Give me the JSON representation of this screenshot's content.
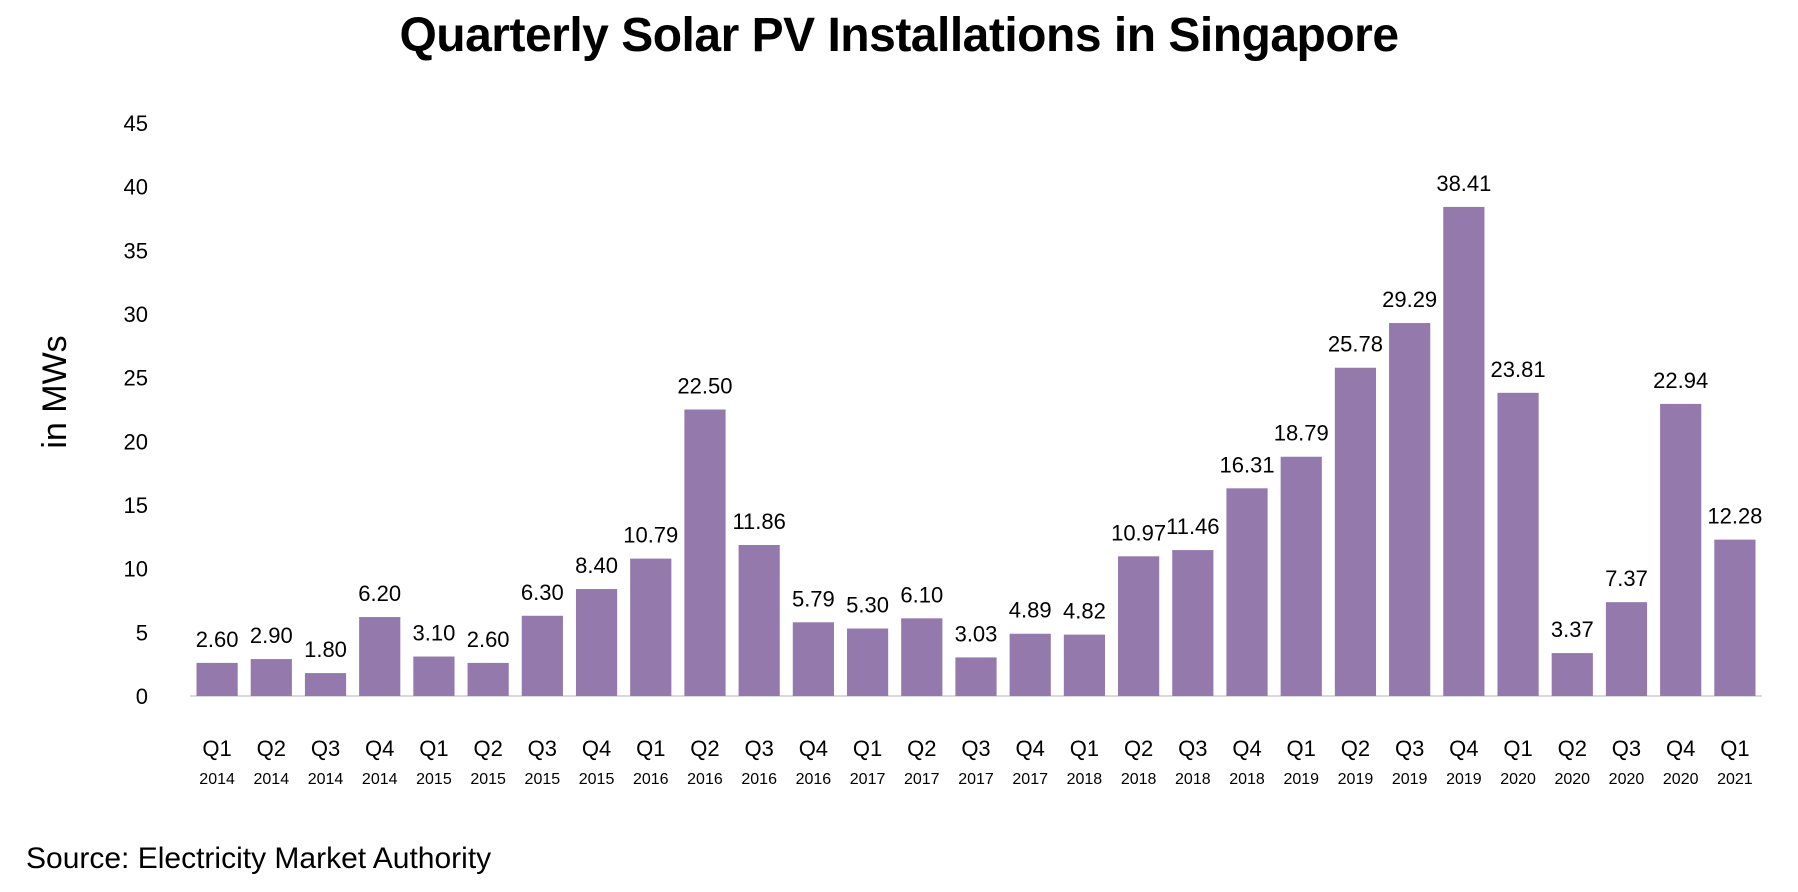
{
  "chart_data": {
    "type": "bar",
    "title": "Quarterly Solar PV Installations in Singapore",
    "ylabel": "in MWs",
    "xlabel": "",
    "ylim": [
      0,
      45
    ],
    "yticks": [
      0,
      5,
      10,
      15,
      20,
      25,
      30,
      35,
      40,
      45
    ],
    "grid": false,
    "bar_color": "#9479ad",
    "categories": [
      {
        "quarter": "Q1",
        "year": "2014"
      },
      {
        "quarter": "Q2",
        "year": "2014"
      },
      {
        "quarter": "Q3",
        "year": "2014"
      },
      {
        "quarter": "Q4",
        "year": "2014"
      },
      {
        "quarter": "Q1",
        "year": "2015"
      },
      {
        "quarter": "Q2",
        "year": "2015"
      },
      {
        "quarter": "Q3",
        "year": "2015"
      },
      {
        "quarter": "Q4",
        "year": "2015"
      },
      {
        "quarter": "Q1",
        "year": "2016"
      },
      {
        "quarter": "Q2",
        "year": "2016"
      },
      {
        "quarter": "Q3",
        "year": "2016"
      },
      {
        "quarter": "Q4",
        "year": "2016"
      },
      {
        "quarter": "Q1",
        "year": "2017"
      },
      {
        "quarter": "Q2",
        "year": "2017"
      },
      {
        "quarter": "Q3",
        "year": "2017"
      },
      {
        "quarter": "Q4",
        "year": "2017"
      },
      {
        "quarter": "Q1",
        "year": "2018"
      },
      {
        "quarter": "Q2",
        "year": "2018"
      },
      {
        "quarter": "Q3",
        "year": "2018"
      },
      {
        "quarter": "Q4",
        "year": "2018"
      },
      {
        "quarter": "Q1",
        "year": "2019"
      },
      {
        "quarter": "Q2",
        "year": "2019"
      },
      {
        "quarter": "Q3",
        "year": "2019"
      },
      {
        "quarter": "Q4",
        "year": "2019"
      },
      {
        "quarter": "Q1",
        "year": "2020"
      },
      {
        "quarter": "Q2",
        "year": "2020"
      },
      {
        "quarter": "Q3",
        "year": "2020"
      },
      {
        "quarter": "Q4",
        "year": "2020"
      },
      {
        "quarter": "Q1",
        "year": "2021"
      }
    ],
    "values": [
      2.6,
      2.9,
      1.8,
      6.2,
      3.1,
      2.6,
      6.3,
      8.4,
      10.79,
      22.5,
      11.86,
      5.79,
      5.3,
      6.1,
      3.03,
      4.89,
      4.82,
      10.97,
      11.46,
      16.31,
      18.79,
      25.78,
      29.29,
      38.41,
      23.81,
      3.37,
      7.37,
      22.94,
      12.28
    ],
    "value_labels": [
      "2.60",
      "2.90",
      "1.80",
      "6.20",
      "3.10",
      "2.60",
      "6.30",
      "8.40",
      "10.79",
      "22.50",
      "11.86",
      "5.79",
      "5.30",
      "6.10",
      "3.03",
      "4.89",
      "4.82",
      "10.97",
      "11.46",
      "16.31",
      "18.79",
      "25.78",
      "29.29",
      "38.41",
      "23.81",
      "3.37",
      "7.37",
      "22.94",
      "12.28"
    ]
  },
  "footer": {
    "source": "Source: Electricity Market Authority"
  }
}
